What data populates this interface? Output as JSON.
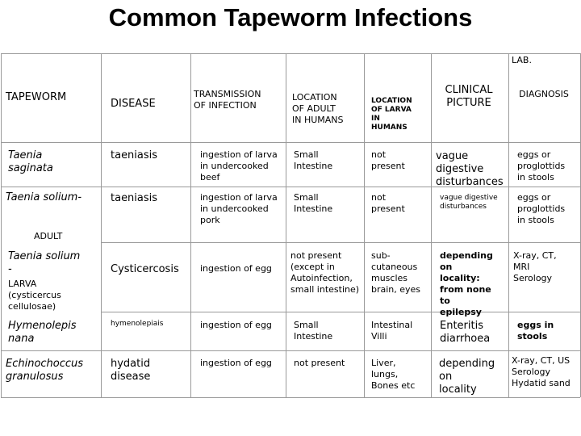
{
  "title": "Common Tapeworm Infections",
  "header": {
    "lab": "LAB.",
    "tapeworm": "TAPEWORM",
    "disease": "DISEASE",
    "transmission": "TRANSMISSION\nOF INFECTION",
    "location_adult": "LOCATION\nOF ADULT\nIN HUMANS",
    "location_larva": "LOCATION\n OF LARVA\nIN\nHUMANS",
    "clinical": "CLINICAL\nPICTURE",
    "diagnosis": "DIAGNOSIS"
  },
  "rows": [
    {
      "tapeworm": "Taenia\n saginata",
      "disease": "taeniasis",
      "transmission": "ingestion of larva\nin undercooked\nbeef",
      "location_adult": "Small\nIntestine",
      "location_larva": "not\npresent",
      "clinical": "vague\ndigestive\ndisturbances",
      "diagnosis": "eggs or\nproglottids\nin stools"
    },
    {
      "tapeworm": "Taenia solium-",
      "tapeworm_note": "ADULT",
      "disease": "taeniasis",
      "transmission": "ingestion of larva\nin undercooked\npork",
      "location_adult": "Small\nIntestine",
      "location_larva": "not\npresent",
      "clinical": "vague digestive\ndisturbances",
      "diagnosis": "eggs or\nproglottids\nin stools"
    },
    {
      "tapeworm": "Taenia solium\n-",
      "tapeworm_note": "LARVA\n(cysticercus\ncellulosae)",
      "disease": "Cysticercosis",
      "transmission": "ingestion of egg",
      "location_adult": "not present\n(except in\nAutoinfection,\nsmall intestine)",
      "location_larva": "sub-\ncutaneous\nmuscles\nbrain, eyes",
      "clinical": "depending\non\nlocality:\nfrom none\nto\nepilepsy",
      "diagnosis": "X-ray, CT,\nMRI\nSerology"
    },
    {
      "tapeworm": "Hymenolepis\n nana",
      "disease": "hymenolepiais",
      "transmission": "ingestion of egg",
      "location_adult": "Small\nIntestine",
      "location_larva": "Intestinal\nVilli",
      "clinical": "Enteritis\ndiarrhoea",
      "diagnosis": "eggs in\nstools"
    },
    {
      "tapeworm": "Echinochoccus\n granulosus",
      "disease": "hydatid\ndisease",
      "transmission": "ingestion of egg",
      "location_adult": "not present",
      "location_larva": "Liver,\nlungs,\nBones etc",
      "clinical": "depending\non\nlocality",
      "diagnosis": "X-ray, CT, US\nSerology\nHydatid sand"
    }
  ]
}
